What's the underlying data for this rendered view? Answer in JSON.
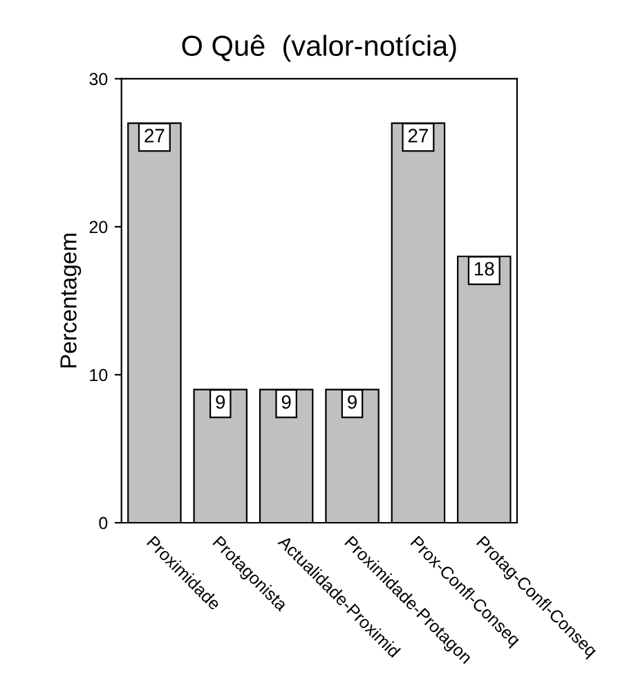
{
  "chart_data": {
    "type": "bar",
    "title": "O Quê  (valor-notícia)",
    "ylabel": "Percentagem",
    "categories": [
      "Proximidade",
      "Protagonista",
      "Actualidade-Proximid",
      "Proximidade-Protagon",
      "Prox-Confl-Conseq",
      "Protag-Confl-Conseq"
    ],
    "values": [
      27,
      9,
      9,
      9,
      27,
      18
    ],
    "color": "#c0c0c0",
    "data_labels": true,
    "ylim": [
      0,
      30
    ],
    "yticks": [
      0,
      10,
      20,
      30
    ],
    "grid": false,
    "legend": false
  }
}
